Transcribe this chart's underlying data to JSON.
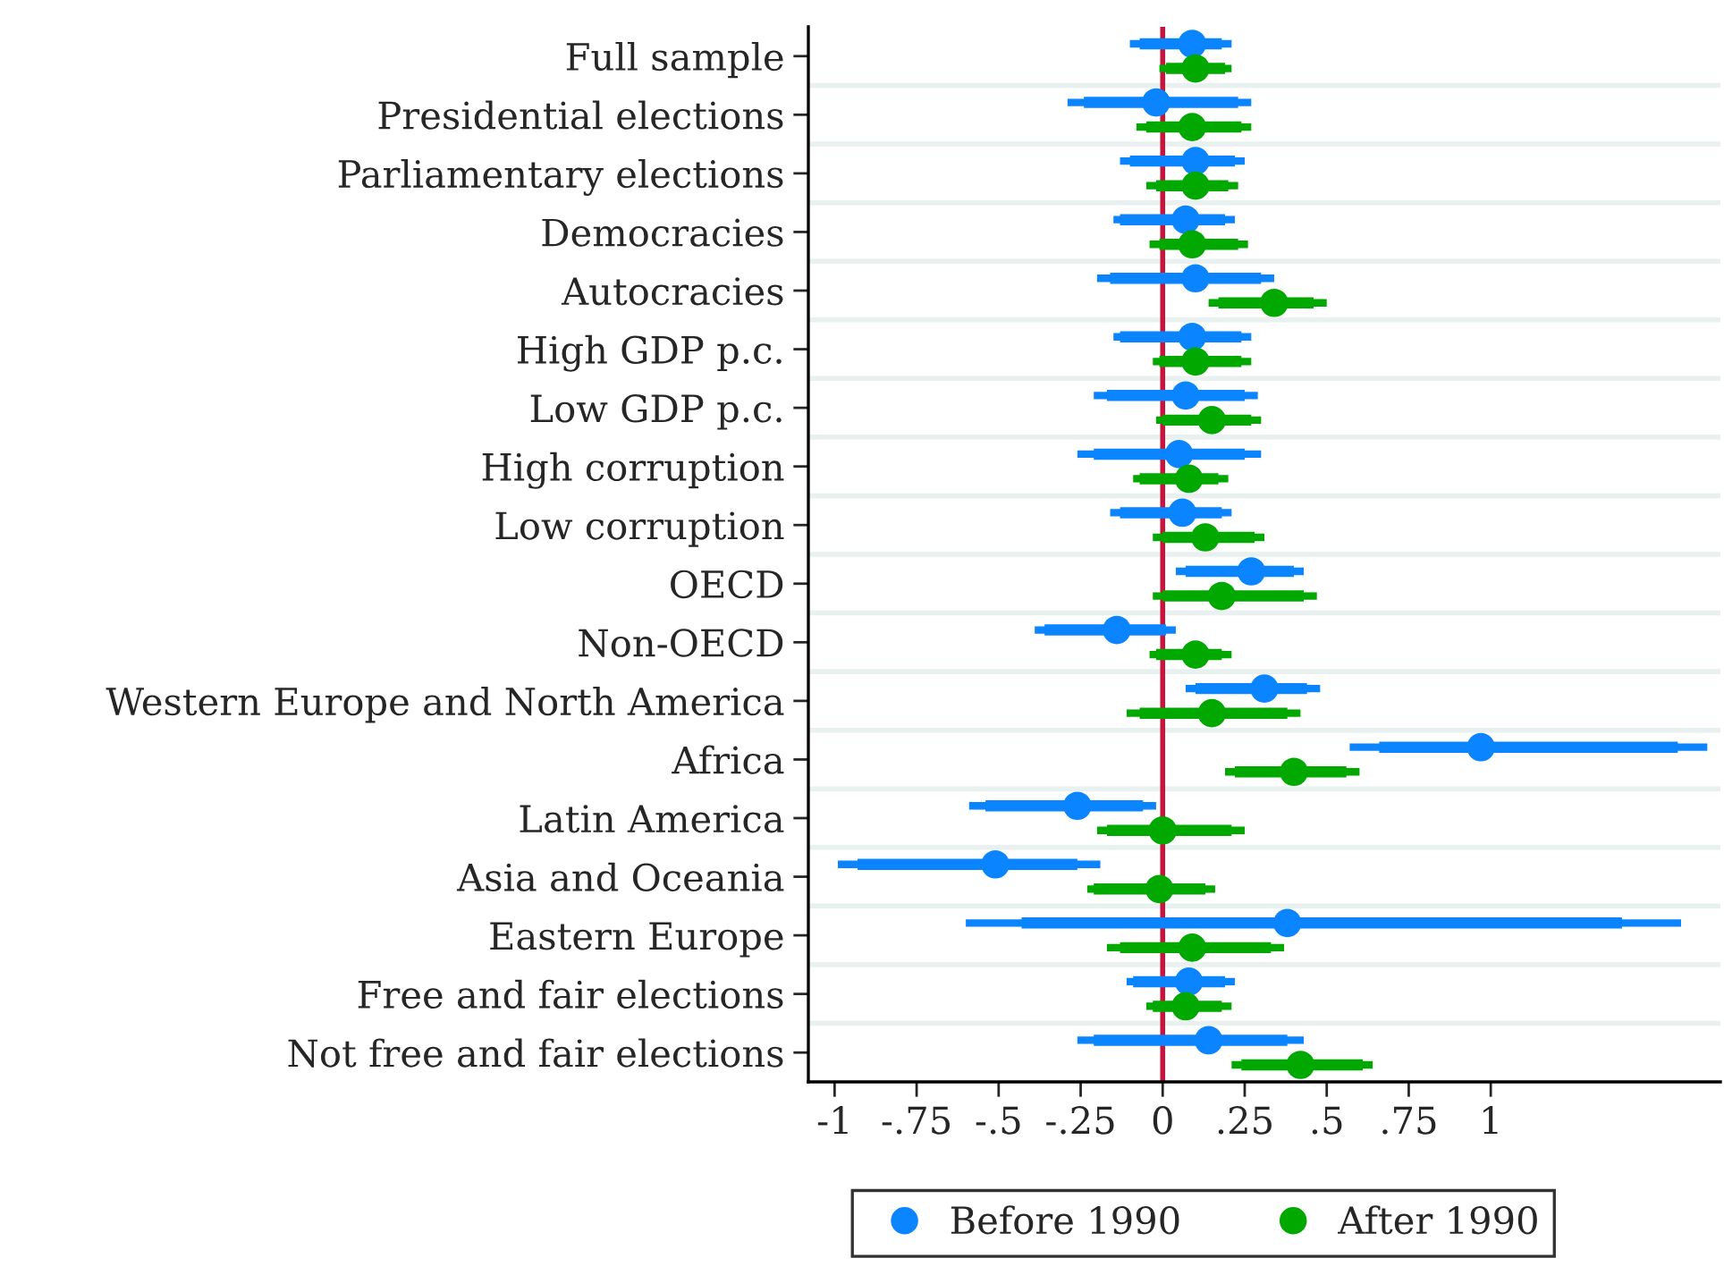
{
  "chart_data": {
    "type": "scatter",
    "orientation": "horizontal",
    "marker": "circle",
    "grid": "y",
    "legend": "bottom",
    "categories": [
      "Full sample",
      "Presidential elections",
      "Parliamentary elections",
      "Democracies",
      "Autocracies",
      "High GDP p.c.",
      "Low GDP p.c.",
      "High corruption",
      "Low corruption",
      "OECD",
      "Non-OECD",
      "Western Europe and North America",
      "Africa",
      "Latin America",
      "Asia and Oceania",
      "Eastern Europe",
      "Free and fair elections",
      "Not free and fair elections"
    ],
    "series": [
      {
        "name": "Before 1990",
        "color": "#0a84ff",
        "values": [
          0.09,
          -0.02,
          0.1,
          0.07,
          0.1,
          0.09,
          0.07,
          0.05,
          0.06,
          0.27,
          -0.14,
          0.31,
          0.97,
          -0.26,
          -0.51,
          0.38,
          0.08,
          0.14
        ],
        "errors": [
          [
            -0.1,
            0.21
          ],
          [
            -0.29,
            0.27
          ],
          [
            -0.13,
            0.25
          ],
          [
            -0.15,
            0.22
          ],
          [
            -0.2,
            0.34
          ],
          [
            -0.15,
            0.27
          ],
          [
            -0.21,
            0.29
          ],
          [
            -0.26,
            0.3
          ],
          [
            -0.16,
            0.21
          ],
          [
            0.04,
            0.43
          ],
          [
            -0.39,
            0.04
          ],
          [
            0.07,
            0.48
          ],
          [
            0.57,
            1.66
          ],
          [
            -0.59,
            -0.02
          ],
          [
            -0.99,
            -0.19
          ],
          [
            -0.6,
            1.58
          ],
          [
            -0.11,
            0.22
          ],
          [
            -0.26,
            0.43
          ]
        ]
      },
      {
        "name": "After 1990",
        "color": "#00a800",
        "values": [
          0.1,
          0.09,
          0.1,
          0.09,
          0.34,
          0.1,
          0.15,
          0.08,
          0.13,
          0.18,
          0.1,
          0.15,
          0.4,
          0.0,
          -0.01,
          0.09,
          0.07,
          0.42
        ],
        "errors": [
          [
            -0.01,
            0.21
          ],
          [
            -0.08,
            0.27
          ],
          [
            -0.05,
            0.23
          ],
          [
            -0.04,
            0.26
          ],
          [
            0.14,
            0.5
          ],
          [
            -0.03,
            0.27
          ],
          [
            -0.02,
            0.3
          ],
          [
            -0.09,
            0.2
          ],
          [
            -0.03,
            0.31
          ],
          [
            -0.03,
            0.47
          ],
          [
            -0.04,
            0.21
          ],
          [
            -0.11,
            0.42
          ],
          [
            0.19,
            0.6
          ],
          [
            -0.2,
            0.25
          ],
          [
            -0.23,
            0.16
          ],
          [
            -0.17,
            0.37
          ],
          [
            -0.05,
            0.21
          ],
          [
            0.21,
            0.64
          ]
        ]
      },
      {
        "type": "bar",
        "color": "#0a84ff",
        "base": [
          -0.07,
          -0.24,
          -0.1,
          -0.13,
          -0.16,
          -0.13,
          -0.17,
          -0.21,
          -0.13,
          0.07,
          -0.36,
          0.1,
          0.66,
          -0.54,
          -0.93,
          -0.43,
          -0.09,
          -0.21
        ],
        "values": [
          0.25,
          0.47,
          0.32,
          0.32,
          0.46,
          0.37,
          0.42,
          0.46,
          0.31,
          0.33,
          0.37,
          0.34,
          0.91,
          0.48,
          0.67,
          1.83,
          0.28,
          0.59
        ]
      },
      {
        "type": "bar",
        "color": "#00a800",
        "base": [
          0.01,
          -0.05,
          -0.02,
          -0.01,
          0.17,
          -0.01,
          0.0,
          -0.07,
          0.0,
          0.0,
          -0.02,
          -0.07,
          0.22,
          -0.17,
          -0.21,
          -0.13,
          -0.03,
          0.24
        ],
        "values": [
          0.18,
          0.29,
          0.22,
          0.24,
          0.29,
          0.25,
          0.27,
          0.24,
          0.28,
          0.43,
          0.2,
          0.45,
          0.34,
          0.38,
          0.34,
          0.46,
          0.21,
          0.37
        ]
      }
    ],
    "xlim": [
      -1.08,
      1.7
    ],
    "xticks": [
      {
        "value": -1,
        "label": "-1"
      },
      {
        "value": -0.75,
        "label": "-.75"
      },
      {
        "value": -0.5,
        "label": "-.5"
      },
      {
        "value": -0.25,
        "label": "-.25"
      },
      0,
      {
        "value": 0.25,
        "label": ".25"
      },
      {
        "value": 0.5,
        "label": ".5"
      },
      {
        "value": 0.75,
        "label": ".75"
      },
      1
    ],
    "ref_lines": [
      {
        "axis": "x",
        "value": 0,
        "color": "#c8143c"
      }
    ]
  }
}
